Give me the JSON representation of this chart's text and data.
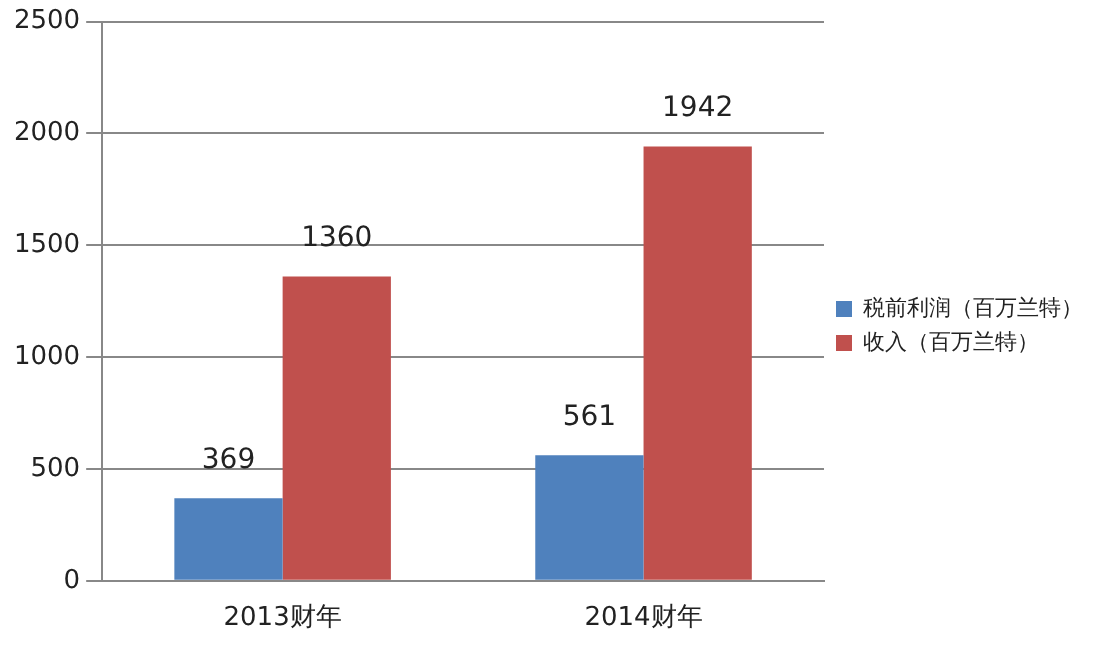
{
  "chart_data": {
    "type": "bar",
    "categories": [
      "2013财年",
      "2014财年"
    ],
    "series": [
      {
        "name": "税前利润（百万兰特）",
        "color": "#4f81bd",
        "values": [
          369,
          561
        ]
      },
      {
        "name": "收入（百万兰特）",
        "color": "#c0504d",
        "values": [
          1360,
          1942
        ]
      }
    ],
    "ylim": [
      0,
      2500
    ],
    "yticks": [
      0,
      500,
      1000,
      1500,
      2000,
      2500
    ],
    "grid": "y",
    "legend": "right",
    "data_labels": true
  }
}
